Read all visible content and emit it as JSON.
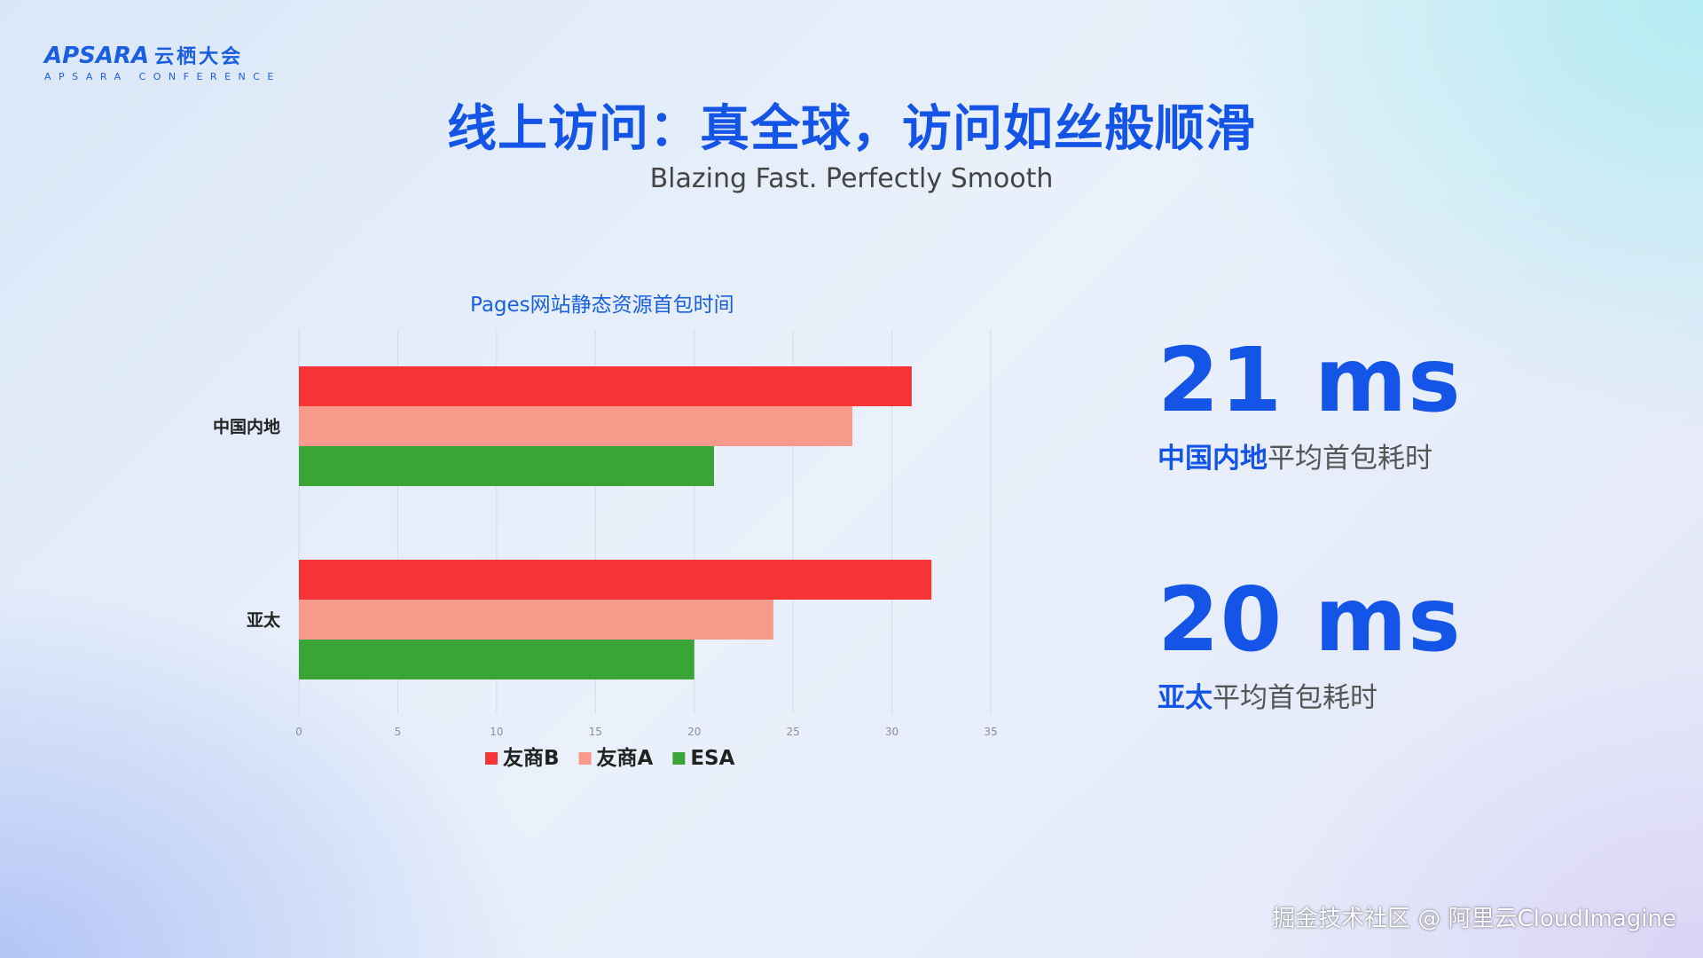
{
  "logo": {
    "brand": "APSARA",
    "brand_cn": "云栖大会",
    "sub": "APSARA CONFERENCE"
  },
  "title": "线上访问：真全球，访问如丝般顺滑",
  "subtitle": "Blazing Fast. Perfectly Smooth",
  "chart_data": {
    "type": "bar",
    "orientation": "horizontal",
    "title": "Pages网站静态资源首包时间",
    "categories": [
      "中国内地",
      "亚太"
    ],
    "series": [
      {
        "name": "友商B",
        "values": [
          31,
          32
        ],
        "color": "#f53436"
      },
      {
        "name": "友商A",
        "values": [
          28,
          24
        ],
        "color": "#f79a8b"
      },
      {
        "name": "ESA",
        "values": [
          21,
          20
        ],
        "color": "#3aa436"
      }
    ],
    "xlim": [
      0,
      35
    ],
    "xticks": [
      "0",
      "5",
      "10",
      "15",
      "20",
      "25",
      "30",
      "35"
    ],
    "grid": true,
    "legend": "bottom"
  },
  "stats": [
    {
      "value": "21 ms",
      "highlight": "中国内地",
      "rest": "平均首包耗时"
    },
    {
      "value": "20 ms",
      "highlight": "亚太",
      "rest": "平均首包耗时"
    }
  ],
  "watermark": "掘金技术社区 @ 阿里云CloudImagine"
}
